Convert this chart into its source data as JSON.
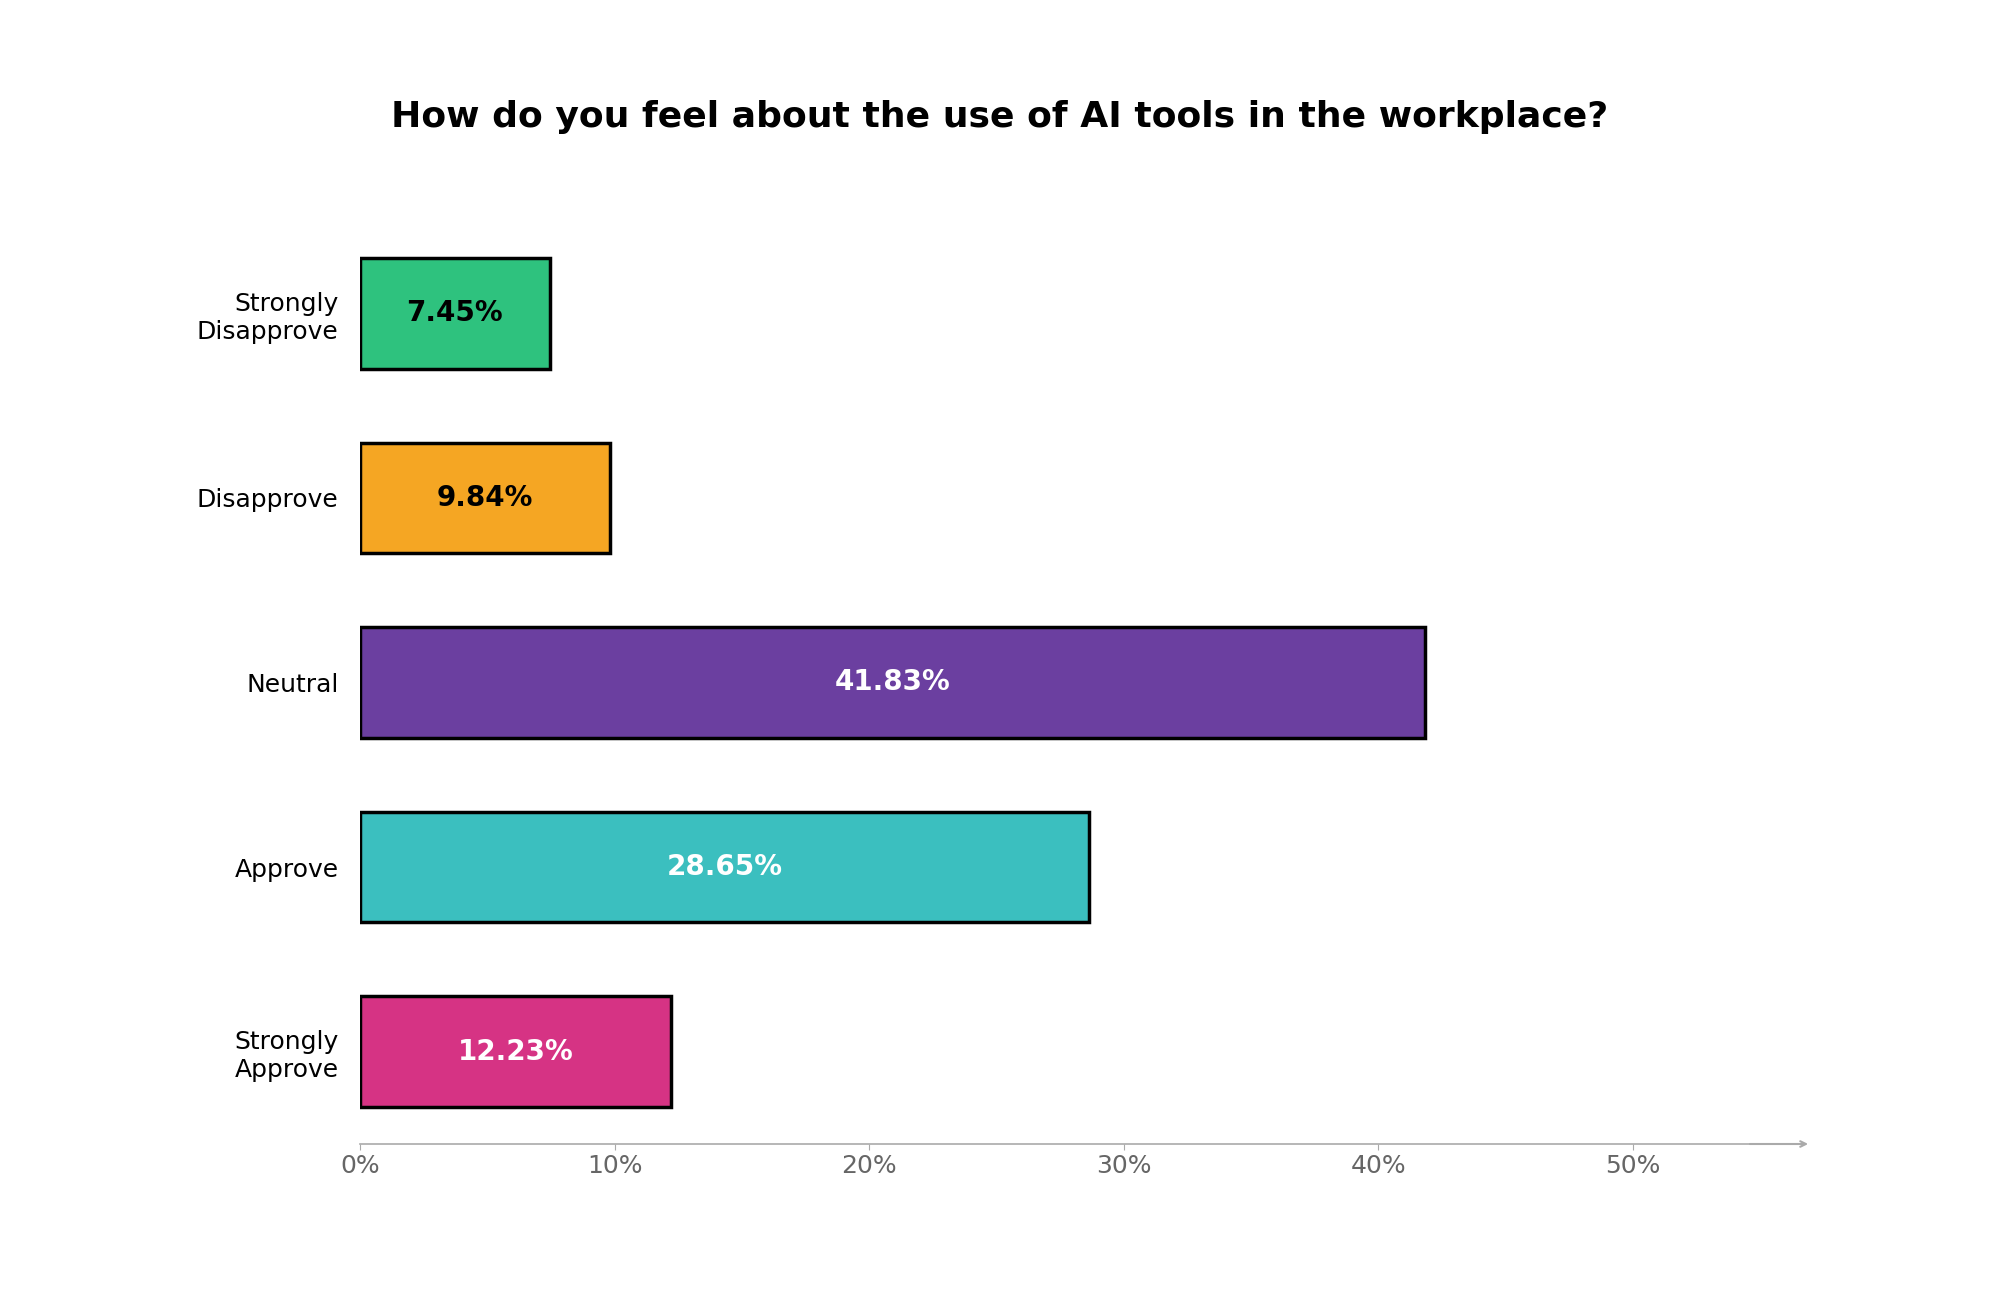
{
  "title": "How do you feel about the use of AI tools in the workplace?",
  "categories": [
    "Strongly\nDisapprove",
    "Disapprove",
    "Neutral",
    "Approve",
    "Strongly\nApprove"
  ],
  "values": [
    7.45,
    9.84,
    41.83,
    28.65,
    12.23
  ],
  "labels": [
    "7.45%",
    "9.84%",
    "41.83%",
    "28.65%",
    "12.23%"
  ],
  "bar_colors": [
    "#2ec27e",
    "#f5a623",
    "#6b3fa0",
    "#3bbfbf",
    "#d63384"
  ],
  "bar_edge_colors": [
    "#000000",
    "#000000",
    "#000000",
    "#000000",
    "#000000"
  ],
  "label_colors": [
    "#000000",
    "#000000",
    "#ffffff",
    "#ffffff",
    "#ffffff"
  ],
  "background_color": "#ffffff",
  "title_fontsize": 26,
  "label_fontsize": 20,
  "tick_fontsize": 18,
  "category_fontsize": 18,
  "xlim": [
    0,
    55
  ],
  "xticks": [
    0,
    10,
    20,
    30,
    40,
    50
  ],
  "xticklabels": [
    "0%",
    "10%",
    "20%",
    "30%",
    "40%",
    "50%"
  ],
  "bar_height": 0.6,
  "figsize": [
    20.0,
    13.0
  ]
}
